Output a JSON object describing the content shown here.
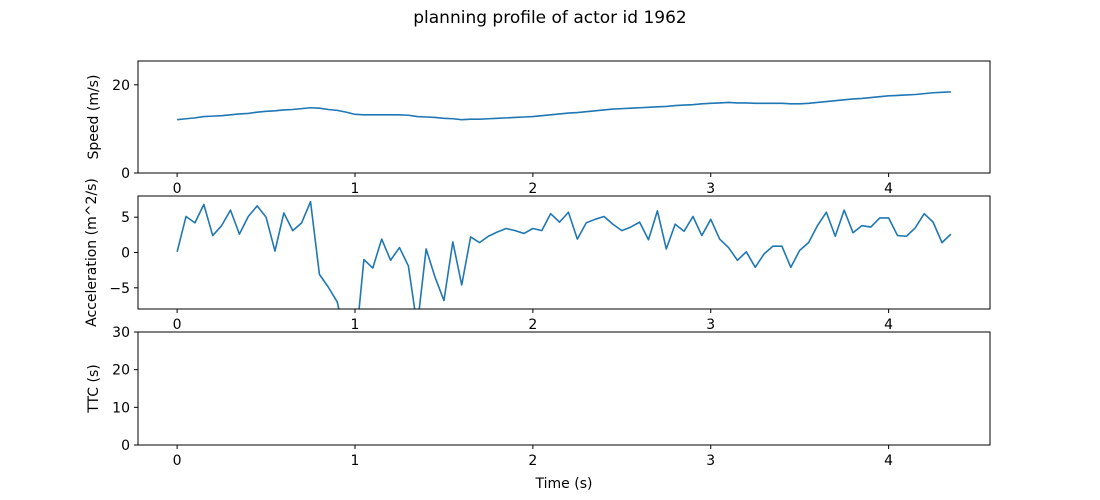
{
  "title": "planning profile of actor id 1962",
  "line_color": "#1f77b4",
  "chart_data": [
    {
      "type": "line",
      "ylabel": "Speed (m/s)",
      "xlabel": "",
      "xlim": [
        -0.22,
        4.57
      ],
      "ylim": [
        0,
        25.4
      ],
      "xticks": [
        0,
        1,
        2,
        3,
        4
      ],
      "yticks": [
        0,
        20
      ],
      "grid": false,
      "x": [
        0,
        0.05,
        0.1,
        0.15,
        0.2,
        0.25,
        0.3,
        0.35,
        0.4,
        0.45,
        0.5,
        0.55,
        0.6,
        0.65,
        0.7,
        0.75,
        0.8,
        0.85,
        0.9,
        0.95,
        1.0,
        1.05,
        1.1,
        1.15,
        1.2,
        1.25,
        1.3,
        1.35,
        1.4,
        1.45,
        1.5,
        1.55,
        1.6,
        1.65,
        1.7,
        1.75,
        1.8,
        1.85,
        1.9,
        1.95,
        2.0,
        2.05,
        2.1,
        2.15,
        2.2,
        2.25,
        2.3,
        2.35,
        2.4,
        2.45,
        2.5,
        2.55,
        2.6,
        2.65,
        2.7,
        2.75,
        2.8,
        2.85,
        2.9,
        2.95,
        3.0,
        3.05,
        3.1,
        3.15,
        3.2,
        3.25,
        3.3,
        3.35,
        3.4,
        3.45,
        3.5,
        3.55,
        3.6,
        3.65,
        3.7,
        3.75,
        3.8,
        3.85,
        3.9,
        3.95,
        4.0,
        4.05,
        4.1,
        4.15,
        4.2,
        4.25,
        4.3,
        4.35
      ],
      "y": [
        12.1,
        12.3,
        12.5,
        12.8,
        12.9,
        13.0,
        13.2,
        13.4,
        13.5,
        13.8,
        14.0,
        14.1,
        14.3,
        14.4,
        14.6,
        14.8,
        14.7,
        14.4,
        14.2,
        13.8,
        13.3,
        13.2,
        13.2,
        13.2,
        13.2,
        13.2,
        13.1,
        12.8,
        12.7,
        12.6,
        12.4,
        12.3,
        12.1,
        12.2,
        12.2,
        12.3,
        12.4,
        12.5,
        12.6,
        12.7,
        12.8,
        13.0,
        13.2,
        13.4,
        13.6,
        13.7,
        13.9,
        14.1,
        14.3,
        14.5,
        14.6,
        14.7,
        14.8,
        14.9,
        15.0,
        15.1,
        15.3,
        15.4,
        15.5,
        15.7,
        15.8,
        15.9,
        16.0,
        15.9,
        15.9,
        15.8,
        15.8,
        15.8,
        15.8,
        15.7,
        15.7,
        15.8,
        16.0,
        16.2,
        16.4,
        16.6,
        16.8,
        16.9,
        17.1,
        17.3,
        17.5,
        17.6,
        17.7,
        17.8,
        18.0,
        18.2,
        18.3,
        18.4
      ]
    },
    {
      "type": "line",
      "ylabel": "Acceleration (m^2/s)",
      "xlabel": "",
      "xlim": [
        -0.22,
        4.57
      ],
      "ylim": [
        -8,
        8
      ],
      "xticks": [
        0,
        1,
        2,
        3,
        4
      ],
      "yticks": [
        -5,
        0,
        5
      ],
      "grid": false,
      "x": [
        0,
        0.05,
        0.1,
        0.15,
        0.2,
        0.25,
        0.3,
        0.35,
        0.4,
        0.45,
        0.5,
        0.55,
        0.6,
        0.65,
        0.7,
        0.75,
        0.8,
        0.85,
        0.9,
        0.95,
        1.0,
        1.05,
        1.1,
        1.15,
        1.2,
        1.25,
        1.3,
        1.35,
        1.4,
        1.45,
        1.5,
        1.55,
        1.6,
        1.65,
        1.7,
        1.75,
        1.8,
        1.85,
        1.9,
        1.95,
        2.0,
        2.05,
        2.1,
        2.15,
        2.2,
        2.25,
        2.3,
        2.35,
        2.4,
        2.45,
        2.5,
        2.55,
        2.6,
        2.65,
        2.7,
        2.75,
        2.8,
        2.85,
        2.9,
        2.95,
        3.0,
        3.05,
        3.1,
        3.15,
        3.2,
        3.25,
        3.3,
        3.35,
        3.4,
        3.45,
        3.5,
        3.55,
        3.6,
        3.65,
        3.7,
        3.75,
        3.8,
        3.85,
        3.9,
        3.95,
        4.0,
        4.05,
        4.1,
        4.15,
        4.2,
        4.25,
        4.3,
        4.35
      ],
      "y": [
        0.1,
        5.1,
        4.2,
        6.8,
        2.4,
        3.8,
        6.0,
        2.6,
        5.1,
        6.6,
        5.0,
        0.2,
        5.6,
        3.1,
        4.2,
        7.2,
        -3.1,
        -4.9,
        -7.0,
        -12.5,
        -14.0,
        -1.0,
        -2.2,
        1.9,
        -1.1,
        0.7,
        -1.9,
        -10.5,
        0.5,
        -3.5,
        -6.8,
        1.5,
        -4.6,
        2.2,
        1.4,
        2.3,
        2.9,
        3.4,
        3.1,
        2.7,
        3.4,
        3.1,
        5.5,
        4.3,
        5.7,
        1.9,
        4.2,
        4.7,
        5.1,
        4.0,
        3.1,
        3.6,
        4.3,
        1.8,
        5.9,
        0.5,
        4.0,
        3.0,
        5.1,
        2.4,
        4.7,
        1.9,
        0.7,
        -1.1,
        0.1,
        -2.1,
        -0.2,
        0.9,
        0.9,
        -2.1,
        0.3,
        1.4,
        3.8,
        5.7,
        2.3,
        6.0,
        2.8,
        3.8,
        3.6,
        4.9,
        4.9,
        2.4,
        2.3,
        3.5,
        5.5,
        4.3,
        1.4,
        2.6
      ]
    },
    {
      "type": "line",
      "ylabel": "TTC (s)",
      "xlabel": "Time (s)",
      "xlim": [
        -0.22,
        4.57
      ],
      "ylim": [
        0,
        30
      ],
      "xticks": [
        0,
        1,
        2,
        3,
        4
      ],
      "yticks": [
        0,
        10,
        20,
        30
      ],
      "grid": false,
      "x": [],
      "y": []
    }
  ]
}
